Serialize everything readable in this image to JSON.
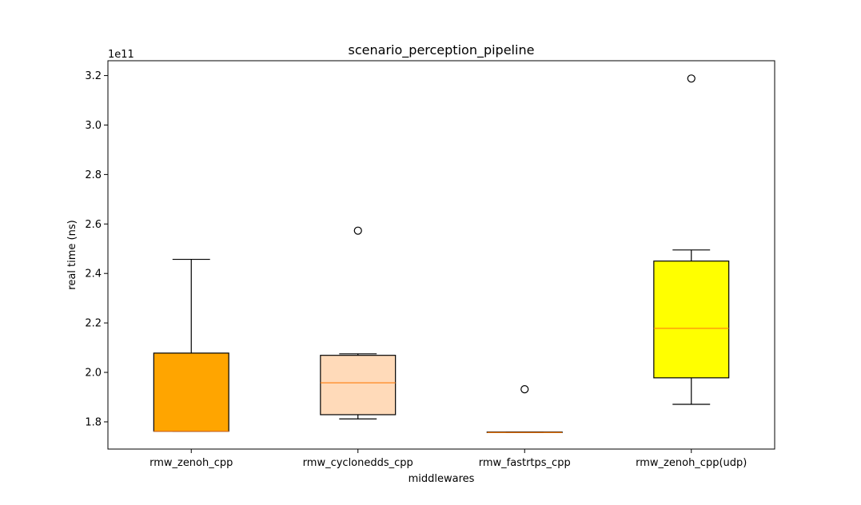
{
  "chart_data": {
    "type": "boxplot",
    "title": "scenario_perception_pipeline",
    "xlabel": "middlewares",
    "ylabel": "real time (ns)",
    "y_offset_label": "1e11",
    "y_scale_multiplier": 100000000000,
    "ylim": [
      1.69,
      3.26
    ],
    "yticks": [
      1.8,
      2.0,
      2.2,
      2.4,
      2.6,
      2.8,
      3.0,
      3.2
    ],
    "ytick_labels": [
      "1.8",
      "2.0",
      "2.2",
      "2.4",
      "2.6",
      "2.8",
      "3.0",
      "3.2"
    ],
    "grid": false,
    "categories": [
      "rmw_zenoh_cpp",
      "rmw_cyclonedds_cpp",
      "rmw_fastrtps_cpp",
      "rmw_zenoh_cpp(udp)"
    ],
    "boxes": [
      {
        "category": "rmw_zenoh_cpp",
        "whisker_low": 1.762,
        "q1": 1.762,
        "median": 1.762,
        "q3": 2.078,
        "whisker_high": 2.457,
        "outliers": [],
        "fill": "#ffa500"
      },
      {
        "category": "rmw_cyclonedds_cpp",
        "whisker_low": 1.812,
        "q1": 1.829,
        "median": 1.958,
        "q3": 2.069,
        "whisker_high": 2.075,
        "outliers": [
          2.573
        ],
        "fill": "#ffdab9"
      },
      {
        "category": "rmw_fastrtps_cpp",
        "whisker_low": 1.757,
        "q1": 1.757,
        "median": 1.757,
        "q3": 1.759,
        "whisker_high": 1.759,
        "outliers": [
          1.932
        ],
        "fill": "#ffffff"
      },
      {
        "category": "rmw_zenoh_cpp(udp)",
        "whisker_low": 1.871,
        "q1": 1.978,
        "median": 2.178,
        "q3": 2.45,
        "whisker_high": 2.495,
        "outliers": [
          3.188
        ],
        "fill": "#ffff00"
      }
    ],
    "median_color": "#ff7f0e"
  }
}
